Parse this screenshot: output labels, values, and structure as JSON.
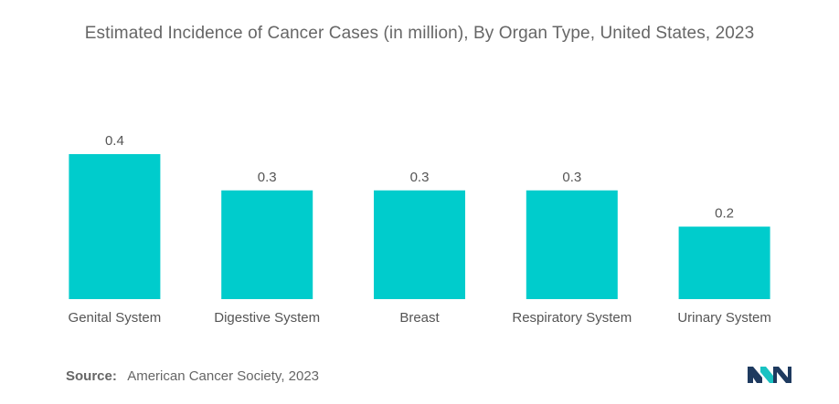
{
  "chart_data": {
    "type": "bar",
    "title": "Estimated Incidence of Cancer Cases (in million), By Organ Type, United States, 2023",
    "xlabel": "",
    "ylabel": "",
    "categories": [
      "Genital System",
      "Digestive System",
      "Breast",
      "Respiratory System",
      "Urinary System"
    ],
    "values": [
      0.4,
      0.3,
      0.3,
      0.3,
      0.2
    ],
    "value_labels": [
      "0.4",
      "0.3",
      "0.3",
      "0.3",
      "0.2"
    ],
    "ylim": [
      0,
      0.4
    ],
    "grid": false,
    "bar_color": "#00CCCC"
  },
  "source": {
    "label": "Source:",
    "text": "American Cancer Society, 2023"
  },
  "logo": {
    "icon": "mordor-intelligence-logo-icon",
    "colors": [
      "#1E3A5F",
      "#19C2C2"
    ]
  }
}
